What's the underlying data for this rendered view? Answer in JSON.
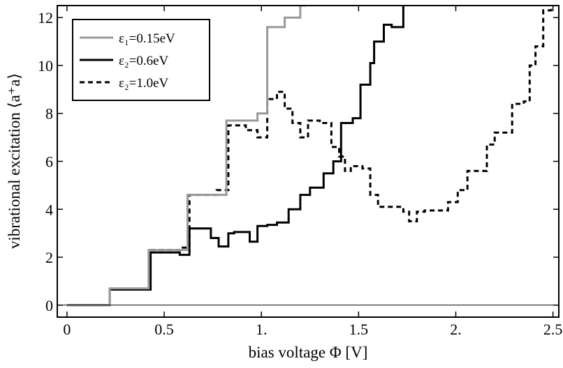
{
  "chart_data": {
    "type": "line",
    "xlabel": "bias voltage Φ [V]",
    "ylabel": "vibrational excitation ⟨a⁺a⟩",
    "xlim": [
      -0.05,
      2.53
    ],
    "ylim": [
      -0.5,
      12.5
    ],
    "xticks": [
      0,
      0.5,
      1.0,
      1.5,
      2.0,
      2.5
    ],
    "xtick_labels": [
      "0",
      "0.5",
      "1.",
      "1.5",
      "2.",
      "2.5"
    ],
    "yticks": [
      0,
      2,
      4,
      6,
      8,
      10,
      12
    ],
    "ytick_labels": [
      "0",
      "2",
      "4",
      "6",
      "8",
      "10",
      "12"
    ],
    "grid": false,
    "reference_line_y": 0,
    "legend_position": "top-left",
    "series": [
      {
        "name": "ε₁=0.15eV",
        "color": "#999999",
        "dash": "solid",
        "step_x": [
          0,
          0.22,
          0.42,
          0.62,
          0.82,
          0.98,
          1.03,
          1.12,
          1.2,
          1.23
        ],
        "step_y": [
          0,
          0.7,
          2.3,
          4.6,
          7.7,
          8.0,
          11.6,
          12.0,
          12.5,
          12.5
        ]
      },
      {
        "name": "ε₂=0.6eV",
        "color": "#000000",
        "dash": "solid",
        "step_x": [
          0,
          0.22,
          0.43,
          0.58,
          0.63,
          0.74,
          0.78,
          0.83,
          0.86,
          0.94,
          0.98,
          1.03,
          1.08,
          1.14,
          1.2,
          1.25,
          1.32,
          1.37,
          1.41,
          1.47,
          1.51,
          1.56,
          1.58,
          1.63,
          1.67,
          1.73,
          1.735
        ],
        "step_y": [
          0,
          0.65,
          2.2,
          2.1,
          3.2,
          2.8,
          2.45,
          3.0,
          3.05,
          2.65,
          3.3,
          3.35,
          3.45,
          4.0,
          4.6,
          4.9,
          5.5,
          6.0,
          7.6,
          7.8,
          9.2,
          10.1,
          11.0,
          11.7,
          11.6,
          12.5,
          12.5
        ]
      },
      {
        "name": "ε₂=1.0eV",
        "color": "#000000",
        "dash": "dashed",
        "step_x": [
          0.43,
          0.58,
          0.63,
          0.77,
          0.83,
          0.92,
          0.98,
          1.03,
          1.08,
          1.12,
          1.16,
          1.2,
          1.24,
          1.3,
          1.36,
          1.4,
          1.43,
          1.46,
          1.52,
          1.56,
          1.6,
          1.66,
          1.73,
          1.76,
          1.8,
          1.84,
          1.96,
          2.01,
          2.06,
          2.11,
          2.16,
          2.2,
          2.29,
          2.35,
          2.38,
          2.41,
          2.45,
          2.49
        ],
        "step_y": [
          2.3,
          2.4,
          4.6,
          4.8,
          7.5,
          7.3,
          7.0,
          8.6,
          8.9,
          8.2,
          7.6,
          7.0,
          7.7,
          7.6,
          6.6,
          6.2,
          5.6,
          5.8,
          5.7,
          4.6,
          4.1,
          4.1,
          3.9,
          3.5,
          3.9,
          3.95,
          4.3,
          4.8,
          5.6,
          5.6,
          6.7,
          7.2,
          8.4,
          8.5,
          10.0,
          10.8,
          12.3,
          12.4
        ]
      }
    ]
  }
}
